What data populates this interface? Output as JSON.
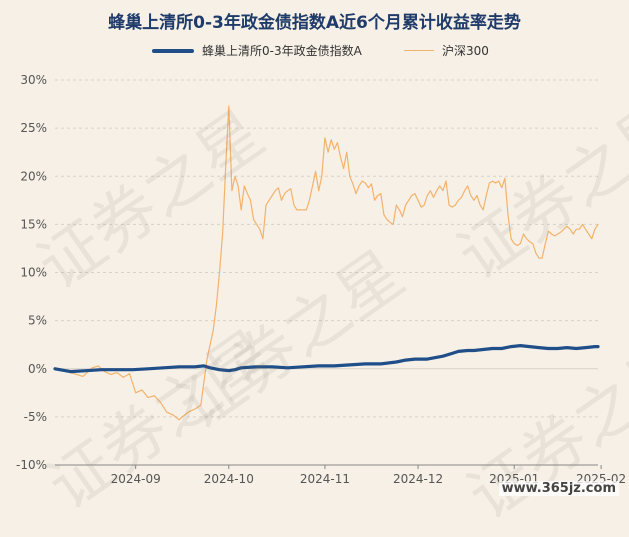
{
  "chart_data": {
    "type": "line",
    "title": "蜂巢上清所0-3年政金债指数A近6个月累计收益率走势",
    "ylim": [
      -10,
      30
    ],
    "yticks": [
      "30%",
      "25%",
      "20%",
      "15%",
      "10%",
      "5%",
      "0%",
      "-5%",
      "-10%"
    ],
    "ytick_values": [
      30,
      25,
      20,
      15,
      10,
      5,
      0,
      -5,
      -10
    ],
    "xticks": [
      "2024-09",
      "2024-10",
      "2024-11",
      "2024-12",
      "2025-01",
      "2025-02"
    ],
    "xtick_values": [
      26,
      56,
      87,
      117,
      148,
      176
    ],
    "x_range": [
      0,
      175
    ],
    "grid": "horizontal",
    "legend_position": "top",
    "series": [
      {
        "name": "蜂巢上清所0-3年政金债指数A",
        "color": "#1f4e89",
        "x": [
          0,
          5,
          10,
          15,
          20,
          25,
          30,
          35,
          40,
          45,
          48,
          50,
          53,
          56,
          58,
          60,
          65,
          70,
          75,
          80,
          85,
          90,
          95,
          100,
          105,
          110,
          113,
          116,
          120,
          125,
          128,
          130,
          133,
          135,
          138,
          141,
          144,
          147,
          150,
          153,
          156,
          159,
          162,
          165,
          168,
          171,
          174,
          175
        ],
        "values": [
          0.0,
          -0.3,
          -0.2,
          -0.1,
          -0.1,
          -0.1,
          0.0,
          0.1,
          0.2,
          0.2,
          0.3,
          0.1,
          -0.1,
          -0.2,
          -0.1,
          0.1,
          0.2,
          0.2,
          0.1,
          0.2,
          0.3,
          0.3,
          0.4,
          0.5,
          0.5,
          0.7,
          0.9,
          1.0,
          1.0,
          1.3,
          1.6,
          1.8,
          1.9,
          1.9,
          2.0,
          2.1,
          2.1,
          2.3,
          2.4,
          2.3,
          2.2,
          2.1,
          2.1,
          2.2,
          2.1,
          2.2,
          2.3,
          2.3
        ]
      },
      {
        "name": "沪深300",
        "color": "#f3b26b",
        "x": [
          0,
          3,
          6,
          9,
          12,
          14,
          16,
          18,
          20,
          22,
          24,
          26,
          28,
          30,
          32,
          34,
          36,
          38,
          40,
          41,
          43,
          45,
          47,
          49,
          50,
          51,
          52,
          53,
          54,
          55,
          56,
          57,
          58,
          59,
          60,
          61,
          62,
          63,
          64,
          65,
          66,
          67,
          68,
          69,
          70,
          71,
          72,
          73,
          74,
          75,
          76,
          77,
          78,
          79,
          80,
          81,
          82,
          83,
          84,
          85,
          86,
          87,
          88,
          89,
          90,
          91,
          92,
          93,
          94,
          95,
          96,
          97,
          98,
          99,
          100,
          101,
          102,
          103,
          104,
          105,
          106,
          107,
          108,
          109,
          110,
          111,
          112,
          113,
          114,
          115,
          116,
          117,
          118,
          119,
          120,
          121,
          122,
          123,
          124,
          125,
          126,
          127,
          128,
          129,
          130,
          131,
          132,
          133,
          134,
          135,
          136,
          137,
          138,
          139,
          140,
          141,
          142,
          143,
          144,
          145,
          146,
          147,
          148,
          149,
          150,
          151,
          152,
          153,
          154,
          155,
          156,
          157,
          158,
          159,
          160,
          161,
          162,
          163,
          164,
          165,
          166,
          167,
          168,
          169,
          170,
          171,
          172,
          173,
          174,
          175
        ],
        "values": [
          0.0,
          -0.2,
          -0.5,
          -0.8,
          0.1,
          0.3,
          -0.3,
          -0.6,
          -0.4,
          -0.9,
          -0.5,
          -2.5,
          -2.2,
          -3.0,
          -2.8,
          -3.5,
          -4.5,
          -4.8,
          -5.3,
          -5.0,
          -4.5,
          -4.2,
          -3.8,
          1.0,
          2.5,
          4.0,
          6.5,
          10.0,
          14.0,
          21.0,
          27.3,
          18.5,
          20.0,
          19.0,
          16.5,
          19.0,
          18.2,
          17.5,
          15.5,
          15.0,
          14.5,
          13.5,
          17.0,
          17.5,
          18.0,
          18.5,
          18.8,
          17.5,
          18.2,
          18.5,
          18.7,
          17.0,
          16.5,
          16.5,
          16.5,
          16.5,
          17.5,
          19.0,
          20.5,
          18.5,
          20.0,
          24.0,
          22.5,
          23.8,
          22.8,
          23.5,
          22.0,
          20.8,
          22.5,
          20.0,
          19.2,
          18.2,
          19.0,
          19.5,
          19.3,
          18.8,
          19.2,
          17.5,
          18.0,
          18.2,
          16.0,
          15.5,
          15.2,
          15.0,
          17.0,
          16.5,
          15.8,
          17.0,
          17.5,
          18.0,
          18.2,
          17.5,
          16.8,
          17.0,
          18.0,
          18.5,
          17.8,
          18.5,
          19.0,
          18.5,
          19.5,
          17.0,
          16.8,
          17.0,
          17.5,
          17.8,
          18.5,
          19.0,
          18.0,
          17.5,
          18.0,
          17.0,
          16.5,
          18.0,
          19.3,
          19.5,
          19.3,
          19.5,
          18.8,
          19.8,
          16.0,
          13.5,
          13.0,
          12.8,
          13.0,
          14.0,
          13.5,
          13.2,
          13.0,
          12.0,
          11.5,
          11.5,
          13.0,
          14.3,
          14.0,
          13.8,
          14.0,
          14.2,
          14.5,
          14.8,
          14.5,
          14.0,
          14.5,
          14.5,
          15.0,
          14.5,
          14.0,
          13.5,
          14.5,
          15.0
        ]
      }
    ]
  },
  "watermark": "证券之星",
  "site_mark": "www.365jz.com"
}
